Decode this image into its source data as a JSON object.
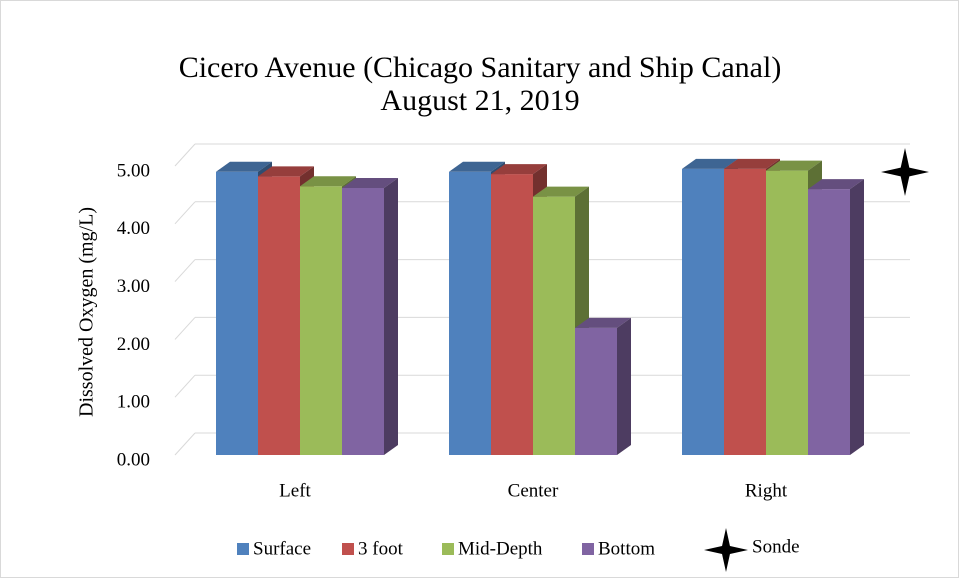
{
  "chart_data": {
    "type": "bar3d",
    "title": [
      "Cicero Avenue (Chicago Sanitary and Ship Canal)",
      "August 21, 2019"
    ],
    "y_label": "Dissolved Oxygen (mg/L)",
    "categories": [
      "Left",
      "Center",
      "Right"
    ],
    "series": [
      {
        "name": "Surface",
        "color": "#4f81bd",
        "values": [
          4.9,
          4.9,
          4.95
        ]
      },
      {
        "name": "3 foot",
        "color": "#c0504d",
        "values": [
          4.82,
          4.86,
          4.95
        ]
      },
      {
        "name": "Mid-Depth",
        "color": "#9bbb59",
        "values": [
          4.65,
          4.47,
          4.92
        ]
      },
      {
        "name": "Bottom",
        "color": "#8064a2",
        "values": [
          4.62,
          2.2,
          4.6
        ]
      }
    ],
    "sonde": {
      "name": "Sonde",
      "value": 5.0
    },
    "ylim": [
      0,
      5.5
    ],
    "yticks": [
      {
        "value": 0,
        "label": "0.00"
      },
      {
        "value": 1,
        "label": "1.00"
      },
      {
        "value": 2,
        "label": "2.00"
      },
      {
        "value": 3,
        "label": "3.00"
      },
      {
        "value": 4,
        "label": "4.00"
      },
      {
        "value": 5,
        "label": "5.00"
      }
    ],
    "grid": true
  }
}
